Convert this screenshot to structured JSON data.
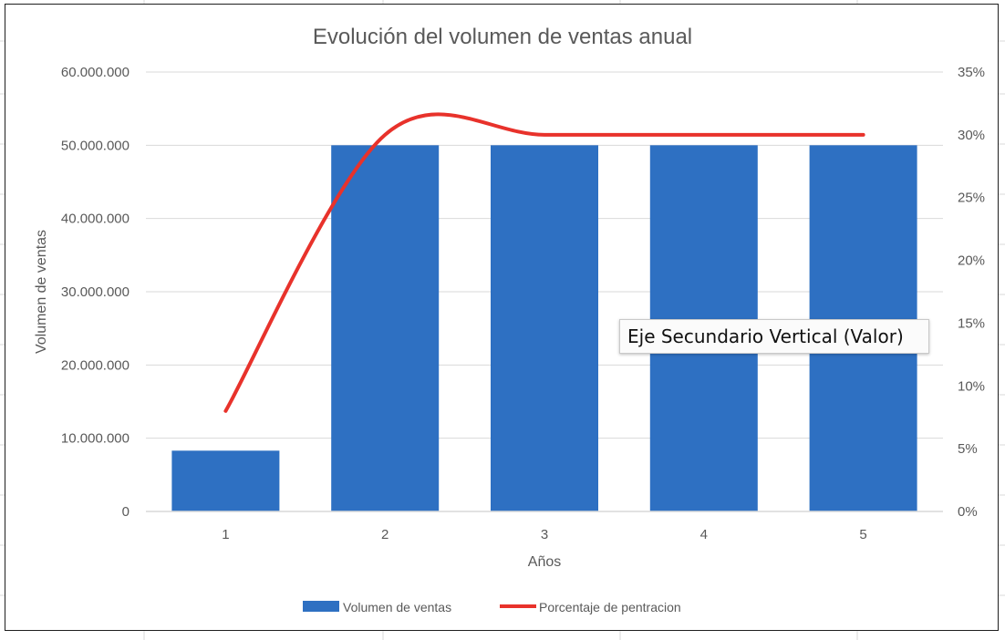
{
  "chart_data": {
    "type": "bar",
    "title": "Evolución del volumen de ventas anual",
    "xlabel": "Años",
    "ylabel": "Volumen de ventas",
    "categories": [
      "1",
      "2",
      "3",
      "4",
      "5"
    ],
    "series": [
      {
        "name": "Volumen de ventas",
        "type": "bar",
        "axis": "primary",
        "color": "#2e70c2",
        "values": [
          8300000,
          50000000,
          50000000,
          50000000,
          50000000
        ]
      },
      {
        "name": "Porcentaje de pentracion",
        "type": "line",
        "axis": "secondary",
        "smooth": true,
        "color": "#e8322b",
        "values": [
          0.08,
          0.3,
          0.3,
          0.3,
          0.3
        ]
      }
    ],
    "ylim": [
      0,
      60000000
    ],
    "y_ticks": [
      "0",
      "10.000.000",
      "20.000.000",
      "30.000.000",
      "40.000.000",
      "50.000.000",
      "60.000.000"
    ],
    "y2lim": [
      0,
      0.35
    ],
    "y2_ticks": [
      "0%",
      "5%",
      "10%",
      "15%",
      "20%",
      "25%",
      "30%",
      "35%"
    ],
    "grid": true,
    "legend_position": "bottom"
  },
  "tooltip": {
    "text": "Eje Secundario Vertical (Valor)"
  }
}
